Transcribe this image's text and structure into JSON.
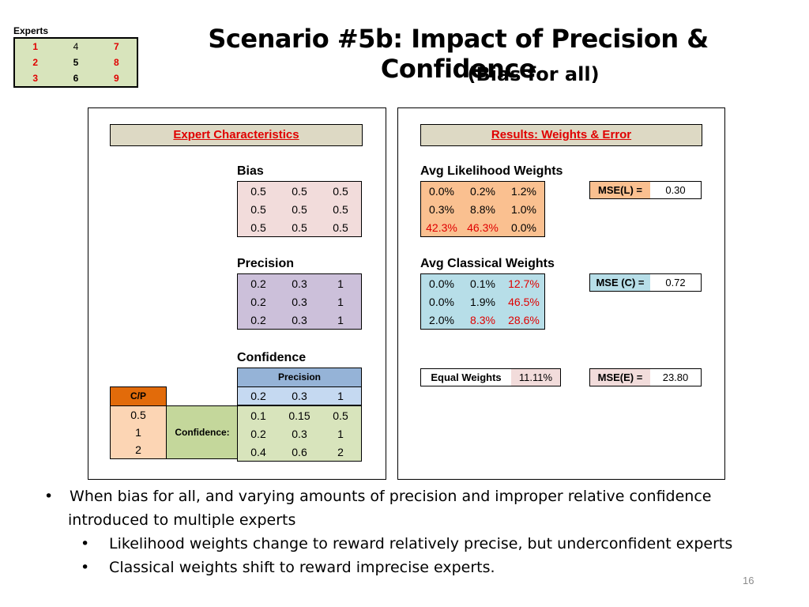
{
  "experts": {
    "label": "Experts",
    "grid": [
      [
        "1",
        "4",
        "7"
      ],
      [
        "2",
        "5",
        "8"
      ],
      [
        "3",
        "6",
        "9"
      ]
    ]
  },
  "title": "Scenario #5b: Impact of Precision & Confidence",
  "subtitle": "(Bias for all)",
  "left_panel": {
    "header": "Expert Characteristics",
    "bias": {
      "label": "Bias",
      "rows": [
        [
          "0.5",
          "0.5",
          "0.5"
        ],
        [
          "0.5",
          "0.5",
          "0.5"
        ],
        [
          "0.5",
          "0.5",
          "0.5"
        ]
      ]
    },
    "precision": {
      "label": "Precision",
      "rows": [
        [
          "0.2",
          "0.3",
          "1"
        ],
        [
          "0.2",
          "0.3",
          "1"
        ],
        [
          "0.2",
          "0.3",
          "1"
        ]
      ]
    },
    "confidence": {
      "label": "Confidence",
      "precision_header": "Precision",
      "cp_label": "C/P",
      "confidence_label": "Confidence:",
      "precision_values": [
        "0.2",
        "0.3",
        "1"
      ],
      "cp_values": [
        "0.5",
        "1",
        "2"
      ],
      "rows": [
        [
          "0.1",
          "0.15",
          "0.5"
        ],
        [
          "0.2",
          "0.3",
          "1"
        ],
        [
          "0.4",
          "0.6",
          "2"
        ]
      ]
    }
  },
  "right_panel": {
    "header": "Results: Weights & Error",
    "likelihood": {
      "label": "Avg Likelihood Weights",
      "rows": [
        [
          "0.0%",
          "0.2%",
          "1.2%"
        ],
        [
          "0.3%",
          "8.8%",
          "1.0%"
        ],
        [
          "42.3%",
          "46.3%",
          "0.0%"
        ]
      ],
      "mse_label": "MSE(L) =",
      "mse_value": "0.30"
    },
    "classical": {
      "label": "Avg Classical Weights",
      "rows": [
        [
          "0.0%",
          "0.1%",
          "12.7%"
        ],
        [
          "0.0%",
          "1.9%",
          "46.5%"
        ],
        [
          "2.0%",
          "8.3%",
          "28.6%"
        ]
      ],
      "mse_label": "MSE (C) =",
      "mse_value": "0.72"
    },
    "equal": {
      "label": "Equal Weights",
      "value": "11.11%",
      "mse_label": "MSE(E) =",
      "mse_value": "23.80"
    }
  },
  "bullets": {
    "main_line1": "When bias for all, and varying amounts of precision and improper relative confidence",
    "main_line2": "introduced to multiple experts",
    "sub1": "Likelihood weights change to reward relatively precise, but underconfident experts",
    "sub2": "Classical weights shift to reward imprecise experts."
  },
  "page_number": "16"
}
